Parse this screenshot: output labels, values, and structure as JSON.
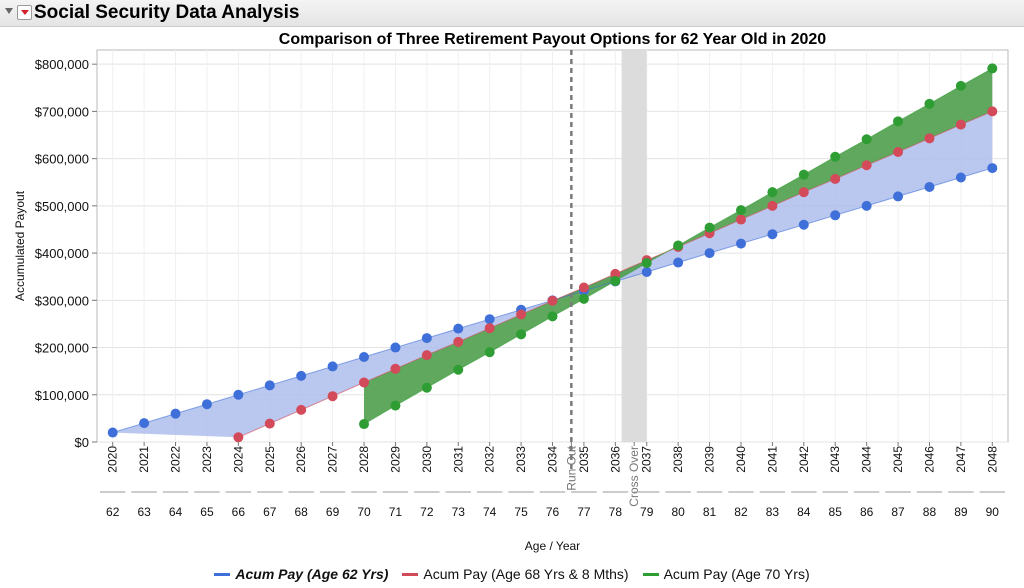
{
  "app": {
    "title": "Social Security Data Analysis"
  },
  "chart_data": {
    "type": "area",
    "title": "Comparison of Three Retirement Payout Options for 62 Year Old in 2020",
    "ylabel": "Accumulated Payout",
    "xlabel": "Age / Year",
    "ylim": [
      0,
      830000
    ],
    "yticks": [
      0,
      100000,
      200000,
      300000,
      400000,
      500000,
      600000,
      700000,
      800000
    ],
    "ytick_labels": [
      "$0",
      "$100,000",
      "$200,000",
      "$300,000",
      "$400,000",
      "$500,000",
      "$600,000",
      "$700,000",
      "$800,000"
    ],
    "grid": true,
    "ages": [
      62,
      63,
      64,
      65,
      66,
      67,
      68,
      69,
      70,
      71,
      72,
      73,
      74,
      75,
      76,
      77,
      78,
      79,
      80,
      81,
      82,
      83,
      84,
      85,
      86,
      87,
      88,
      89,
      90
    ],
    "year_labels": [
      "2020",
      "2021",
      "2022",
      "2023",
      "2024",
      "2025",
      "2026",
      "2027",
      "2028",
      "2029",
      "2030",
      "2031",
      "2032",
      "2033",
      "2034",
      "Run Out",
      "2035",
      "2036",
      "Cross Over",
      "2037",
      "2038",
      "2039",
      "2040",
      "2041",
      "2042",
      "2043",
      "2044",
      "2045",
      "2046",
      "2047",
      "2048"
    ],
    "annotations": [
      {
        "label": "Run Out",
        "at_age": 76.6,
        "style": "dashed-line"
      },
      {
        "label": "Cross Over",
        "from_age": 78.2,
        "to_age": 79.0,
        "style": "shaded-band"
      }
    ],
    "series": [
      {
        "name": "Acum Pay (Age 62 Yrs)",
        "color": "#3f6fd8",
        "fill": "#aebdec",
        "start_age": 62,
        "values": [
          20000,
          40000,
          60000,
          80000,
          100000,
          120000,
          140000,
          160000,
          180000,
          200000,
          220000,
          240000,
          260000,
          280000,
          300000,
          320000,
          340000,
          360000,
          380000,
          400000,
          420000,
          440000,
          460000,
          480000,
          500000,
          520000,
          540000,
          560000,
          580000
        ]
      },
      {
        "name": "Acum Pay (Age 68 Yrs & 8 Mths)",
        "color": "#d34a5a",
        "fill": "#d9a3aa",
        "start_age": 66,
        "values": [
          10000,
          39000,
          68000,
          97000,
          126000,
          155000,
          184000,
          212000,
          241000,
          270000,
          299000,
          327000,
          356000,
          385000,
          413000,
          442000,
          471000,
          500000,
          529000,
          557000,
          586000,
          614000,
          643000,
          672000,
          700000
        ]
      },
      {
        "name": "Acum Pay (Age 70 Yrs)",
        "color": "#2e9d33",
        "fill": "#4f9e4b",
        "start_age": 70,
        "values": [
          38000,
          77000,
          115000,
          153000,
          190000,
          228000,
          266000,
          303000,
          341000,
          379000,
          416000,
          454000,
          491000,
          529000,
          566000,
          604000,
          641000,
          679000,
          716000,
          754000,
          791000
        ]
      }
    ],
    "legend_position": "bottom"
  }
}
